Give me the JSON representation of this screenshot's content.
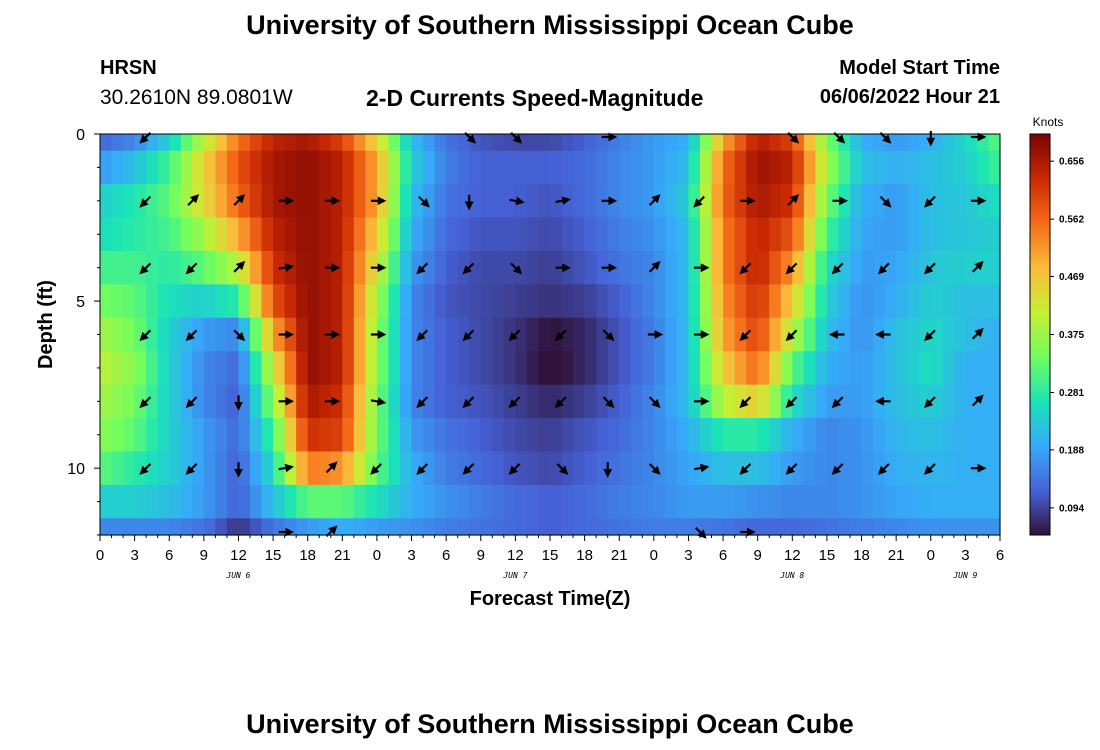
{
  "header": {
    "title": "University of Southern Mississippi Ocean Cube",
    "station": "HRSN",
    "coords": "30.2610N  89.0801W",
    "subtitle": "2-D Currents Speed-Magnitude",
    "model_start_label": "Model Start Time",
    "model_start_value": "06/06/2022 Hour 21"
  },
  "footer": {
    "title": "University of Southern Mississippi Ocean Cube"
  },
  "colors": {
    "colormap": [
      "#30123b",
      "#4662d7",
      "#36aaf9",
      "#1ae4b6",
      "#72fe5e",
      "#c7ef34",
      "#fabb3a",
      "#f66b19",
      "#c92903",
      "#7a0403"
    ],
    "arrow": "#000000"
  },
  "chart_data": {
    "type": "heatmap",
    "title": "2-D Currents Speed-Magnitude",
    "xlabel": "Forecast Time(Z)",
    "ylabel": "Depth (ft)",
    "x_hours_range": [
      0,
      78
    ],
    "y_range": [
      0,
      12
    ],
    "y_inverted": true,
    "x_tick_labels": [
      "0",
      "3",
      "6",
      "9",
      "12",
      "15",
      "18",
      "21",
      "0",
      "3",
      "6",
      "9",
      "12",
      "15",
      "18",
      "21",
      "0",
      "3",
      "6",
      "9",
      "12",
      "15",
      "18",
      "21",
      "0",
      "3",
      "6"
    ],
    "y_ticks": [
      0,
      5,
      10
    ],
    "day_labels": [
      {
        "label": "JUN 6",
        "hour": 12
      },
      {
        "label": "JUN 7",
        "hour": 36
      },
      {
        "label": "JUN 8",
        "hour": 60
      },
      {
        "label": "JUN 9",
        "hour": 75
      }
    ],
    "colorbar": {
      "unit": "Knots",
      "vmin": 0.05,
      "vmax": 0.7,
      "ticks": [
        "0.094",
        "0.188",
        "0.281",
        "0.375",
        "0.469",
        "0.562",
        "0.656"
      ]
    },
    "depth_rows_ft": [
      0,
      1,
      2,
      3,
      4,
      5,
      6,
      7,
      8,
      9,
      10,
      11,
      12
    ],
    "hour_columns": [
      0,
      3,
      6,
      9,
      12,
      15,
      18,
      21,
      24,
      27,
      30,
      33,
      36,
      39,
      42,
      45,
      48,
      51,
      54,
      57,
      60,
      63,
      66,
      69,
      72,
      75,
      78
    ],
    "speed_knots": [
      [
        0.13,
        0.16,
        0.24,
        0.4,
        0.55,
        0.64,
        0.66,
        0.6,
        0.45,
        0.22,
        0.14,
        0.11,
        0.1,
        0.1,
        0.12,
        0.15,
        0.18,
        0.2,
        0.5,
        0.65,
        0.6,
        0.35,
        0.2,
        0.18,
        0.2,
        0.25,
        0.32
      ],
      [
        0.18,
        0.22,
        0.3,
        0.45,
        0.58,
        0.66,
        0.68,
        0.64,
        0.5,
        0.24,
        0.15,
        0.12,
        0.12,
        0.12,
        0.13,
        0.16,
        0.18,
        0.22,
        0.55,
        0.67,
        0.64,
        0.38,
        0.22,
        0.2,
        0.22,
        0.24,
        0.3
      ],
      [
        0.24,
        0.27,
        0.32,
        0.44,
        0.56,
        0.66,
        0.68,
        0.64,
        0.5,
        0.22,
        0.14,
        0.12,
        0.12,
        0.11,
        0.13,
        0.16,
        0.18,
        0.24,
        0.56,
        0.66,
        0.62,
        0.34,
        0.2,
        0.18,
        0.22,
        0.23,
        0.26
      ],
      [
        0.26,
        0.28,
        0.3,
        0.38,
        0.5,
        0.64,
        0.68,
        0.64,
        0.46,
        0.2,
        0.13,
        0.11,
        0.11,
        0.1,
        0.12,
        0.15,
        0.17,
        0.22,
        0.54,
        0.64,
        0.58,
        0.3,
        0.19,
        0.18,
        0.22,
        0.23,
        0.24
      ],
      [
        0.3,
        0.3,
        0.28,
        0.32,
        0.4,
        0.62,
        0.68,
        0.64,
        0.42,
        0.18,
        0.12,
        0.1,
        0.1,
        0.09,
        0.11,
        0.14,
        0.16,
        0.22,
        0.54,
        0.64,
        0.52,
        0.26,
        0.18,
        0.19,
        0.23,
        0.24,
        0.24
      ],
      [
        0.34,
        0.32,
        0.26,
        0.24,
        0.28,
        0.58,
        0.68,
        0.64,
        0.38,
        0.16,
        0.11,
        0.1,
        0.09,
        0.08,
        0.09,
        0.12,
        0.16,
        0.22,
        0.52,
        0.62,
        0.46,
        0.24,
        0.17,
        0.2,
        0.24,
        0.22,
        0.22
      ],
      [
        0.38,
        0.34,
        0.24,
        0.18,
        0.16,
        0.5,
        0.68,
        0.64,
        0.36,
        0.16,
        0.12,
        0.1,
        0.08,
        0.05,
        0.07,
        0.11,
        0.15,
        0.22,
        0.5,
        0.6,
        0.4,
        0.22,
        0.17,
        0.22,
        0.25,
        0.22,
        0.2
      ],
      [
        0.4,
        0.36,
        0.24,
        0.16,
        0.13,
        0.42,
        0.68,
        0.64,
        0.36,
        0.16,
        0.12,
        0.1,
        0.08,
        0.04,
        0.07,
        0.11,
        0.15,
        0.22,
        0.46,
        0.56,
        0.32,
        0.2,
        0.18,
        0.22,
        0.26,
        0.2,
        0.2
      ],
      [
        0.38,
        0.34,
        0.24,
        0.16,
        0.12,
        0.36,
        0.66,
        0.62,
        0.34,
        0.16,
        0.12,
        0.11,
        0.09,
        0.07,
        0.09,
        0.12,
        0.16,
        0.22,
        0.4,
        0.46,
        0.26,
        0.18,
        0.18,
        0.22,
        0.24,
        0.2,
        0.2
      ],
      [
        0.36,
        0.32,
        0.24,
        0.18,
        0.13,
        0.3,
        0.62,
        0.6,
        0.34,
        0.18,
        0.14,
        0.12,
        0.1,
        0.09,
        0.11,
        0.13,
        0.16,
        0.2,
        0.28,
        0.28,
        0.2,
        0.16,
        0.17,
        0.21,
        0.22,
        0.2,
        0.2
      ],
      [
        0.32,
        0.28,
        0.24,
        0.18,
        0.12,
        0.26,
        0.54,
        0.52,
        0.32,
        0.2,
        0.15,
        0.13,
        0.11,
        0.1,
        0.12,
        0.14,
        0.16,
        0.19,
        0.22,
        0.22,
        0.18,
        0.16,
        0.17,
        0.2,
        0.21,
        0.2,
        0.2
      ],
      [
        0.24,
        0.24,
        0.22,
        0.18,
        0.12,
        0.22,
        0.32,
        0.32,
        0.26,
        0.2,
        0.17,
        0.15,
        0.13,
        0.12,
        0.13,
        0.15,
        0.16,
        0.18,
        0.18,
        0.17,
        0.16,
        0.16,
        0.17,
        0.19,
        0.2,
        0.2,
        0.2
      ],
      [
        0.16,
        0.16,
        0.16,
        0.14,
        0.08,
        0.14,
        0.18,
        0.2,
        0.18,
        0.17,
        0.15,
        0.14,
        0.13,
        0.12,
        0.13,
        0.14,
        0.15,
        0.15,
        0.14,
        0.13,
        0.13,
        0.14,
        0.15,
        0.16,
        0.17,
        0.17,
        0.17
      ]
    ],
    "vectors": {
      "depths_ft": [
        0,
        2,
        4,
        6,
        8,
        10,
        12
      ],
      "hours": [
        4,
        8,
        12,
        16,
        20,
        24,
        28,
        32,
        36,
        40,
        44,
        48,
        52,
        56,
        60,
        64,
        68,
        72,
        76
      ],
      "direction_deg": [
        [
          225,
          null,
          null,
          null,
          null,
          null,
          null,
          135,
          135,
          null,
          90,
          null,
          null,
          null,
          135,
          135,
          135,
          180,
          90
        ],
        [
          225,
          45,
          45,
          90,
          90,
          90,
          135,
          180,
          100,
          80,
          90,
          45,
          225,
          90,
          45,
          90,
          135,
          225,
          90
        ],
        [
          225,
          225,
          45,
          80,
          90,
          90,
          225,
          225,
          135,
          90,
          90,
          45,
          90,
          225,
          225,
          225,
          225,
          225,
          45
        ],
        [
          225,
          225,
          135,
          90,
          90,
          90,
          225,
          225,
          225,
          225,
          135,
          90,
          90,
          225,
          225,
          270,
          270,
          225,
          45
        ],
        [
          225,
          225,
          180,
          90,
          90,
          100,
          225,
          225,
          225,
          225,
          135,
          135,
          90,
          225,
          225,
          225,
          270,
          225,
          45
        ],
        [
          225,
          225,
          180,
          80,
          45,
          225,
          225,
          225,
          225,
          135,
          180,
          135,
          80,
          225,
          225,
          225,
          225,
          225,
          90
        ],
        [
          null,
          null,
          null,
          90,
          45,
          null,
          null,
          null,
          null,
          null,
          null,
          null,
          135,
          90,
          null,
          null,
          null,
          null,
          null
        ]
      ]
    }
  }
}
